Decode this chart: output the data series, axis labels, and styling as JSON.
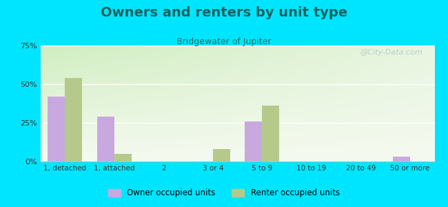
{
  "title": "Owners and renters by unit type",
  "subtitle": "Bridgewater of Jupiter",
  "categories": [
    "1, detached",
    "1, attached",
    "2",
    "3 or 4",
    "5 to 9",
    "10 to 19",
    "20 to 49",
    "50 or more"
  ],
  "owner_values": [
    42,
    29,
    0,
    0,
    26,
    0,
    0,
    3
  ],
  "renter_values": [
    54,
    5,
    0,
    8,
    36,
    0,
    0,
    0
  ],
  "owner_color": "#c9a8e0",
  "renter_color": "#b5c98a",
  "background_outer": "#00e5ff",
  "background_plot_topleft": "#d0eec0",
  "background_plot_topright": "#e8f5e0",
  "background_plot_bottom": "#f5faf0",
  "ylim": [
    0,
    75
  ],
  "yticks": [
    0,
    25,
    50,
    75
  ],
  "ytick_labels": [
    "0%",
    "25%",
    "50%",
    "75%"
  ],
  "title_fontsize": 14,
  "subtitle_fontsize": 9,
  "title_color": "#1a6060",
  "subtitle_color": "#1a7070",
  "legend_label_owner": "Owner occupied units",
  "legend_label_renter": "Renter occupied units",
  "bar_width": 0.35,
  "watermark": "@City-Data.com",
  "watermark_color": "#b0c8c8"
}
